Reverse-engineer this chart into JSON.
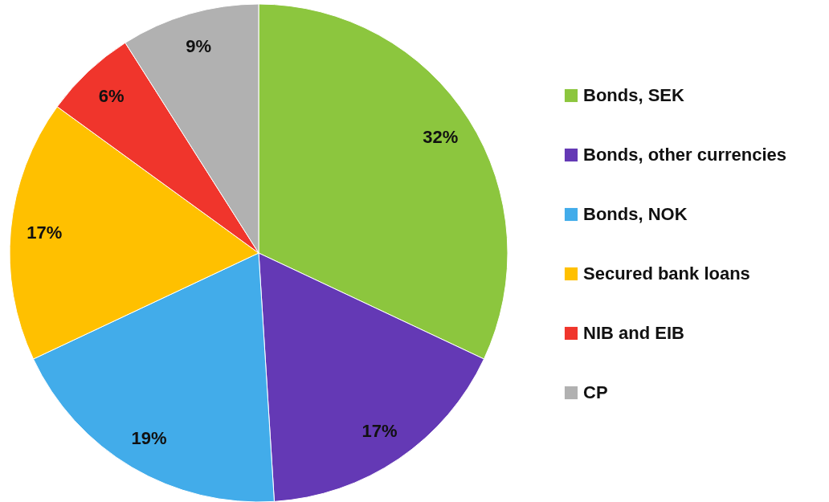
{
  "chart_data": {
    "type": "pie",
    "categories": [
      "Bonds, SEK",
      "Bonds, other currencies",
      "Bonds, NOK",
      "Secured bank loans",
      "NIB and EIB",
      "CP"
    ],
    "values": [
      32,
      17,
      19,
      17,
      6,
      9
    ],
    "value_labels": [
      "32%",
      "17%",
      "19%",
      "17%",
      "6%",
      "9%"
    ],
    "colors": [
      "#8cc63e",
      "#6439b5",
      "#42acea",
      "#ffc000",
      "#f0352c",
      "#b1b1b1"
    ],
    "legend": "right"
  }
}
